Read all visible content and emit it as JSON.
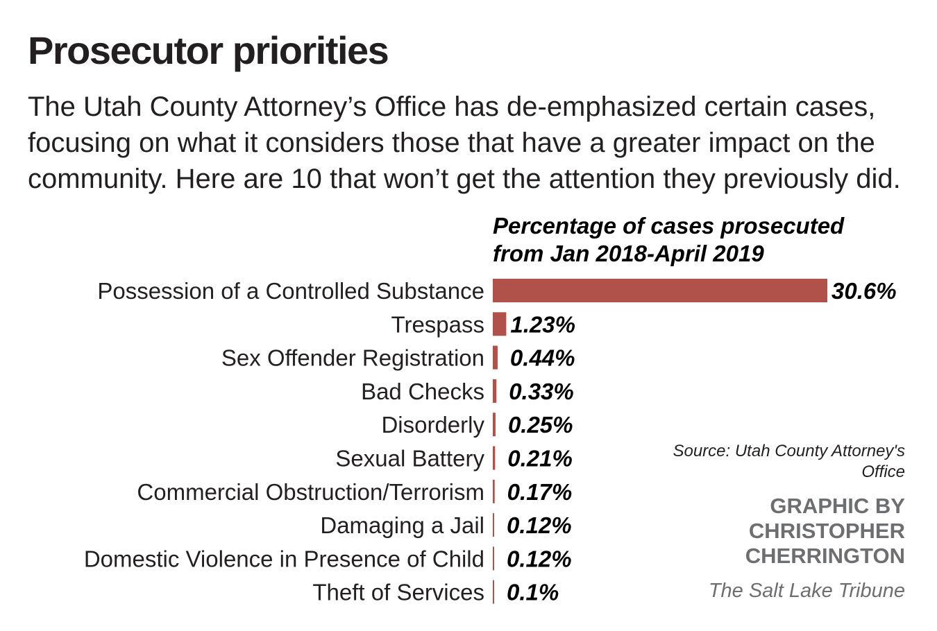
{
  "header": {
    "title": "Prosecutor priorities",
    "intro": "The Utah County Attorney’s Office has de-emphasized certain cases, focusing on what it considers those that have a greater impact on the community. Here are 10 that won’t get the attention they previously did."
  },
  "footer": {
    "source": "Source: Utah County Attorney's Office",
    "credit_line1": "GRAPHIC BY",
    "credit_line2": "CHRISTOPHER",
    "credit_line3": "CHERRINGTON",
    "publication": "The Salt Lake Tribune"
  },
  "chart_data": {
    "type": "bar",
    "orientation": "horizontal",
    "title": "Percentage of cases prosecuted from Jan 2018-April 2019",
    "title_line1": "Percentage of cases prosecuted",
    "title_line2": "from Jan 2018-April 2019",
    "xlabel": "",
    "ylabel": "",
    "unit": "%",
    "bar_color": "#b0514a",
    "grid": false,
    "categories": [
      "Possession of a Controlled Substance",
      "Trespass",
      "Sex Offender Registration",
      "Bad Checks",
      "Disorderly",
      "Sexual Battery",
      "Commercial Obstruction/Terrorism",
      "Damaging a Jail",
      "Domestic Violence in Presence of Child",
      "Theft of Services"
    ],
    "values": [
      30.6,
      1.23,
      0.44,
      0.33,
      0.25,
      0.21,
      0.17,
      0.12,
      0.12,
      0.1
    ],
    "value_labels": [
      "30.6%",
      "1.23%",
      "0.44%",
      "0.33%",
      "0.25%",
      "0.21%",
      "0.17%",
      "0.12%",
      "0.12%",
      "0.1%"
    ],
    "xlim": [
      0,
      30.6
    ]
  }
}
